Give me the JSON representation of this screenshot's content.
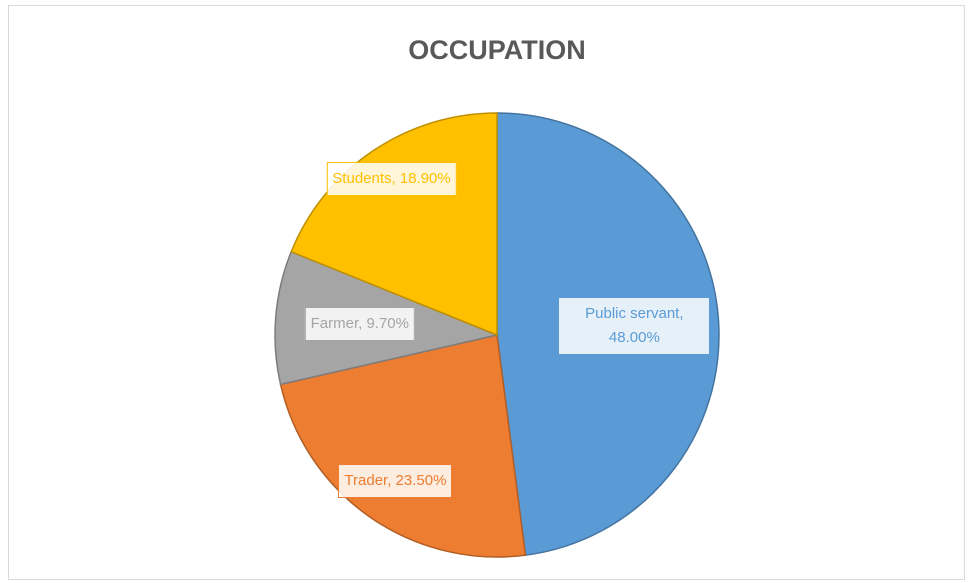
{
  "chart_data": {
    "type": "pie",
    "title": "OCCUPATION",
    "categories": [
      "Public servant",
      "Trader",
      "Farmer",
      "Students"
    ],
    "values": [
      48.0,
      23.5,
      9.7,
      18.9
    ],
    "value_labels": [
      "Public servant, 48.00%",
      "Trader, 23.50%",
      "Farmer, 9.70%",
      "Students, 18.90%"
    ],
    "colors": [
      "#5b9bd5",
      "#ed7d31",
      "#a5a5a5",
      "#ffc000"
    ]
  }
}
